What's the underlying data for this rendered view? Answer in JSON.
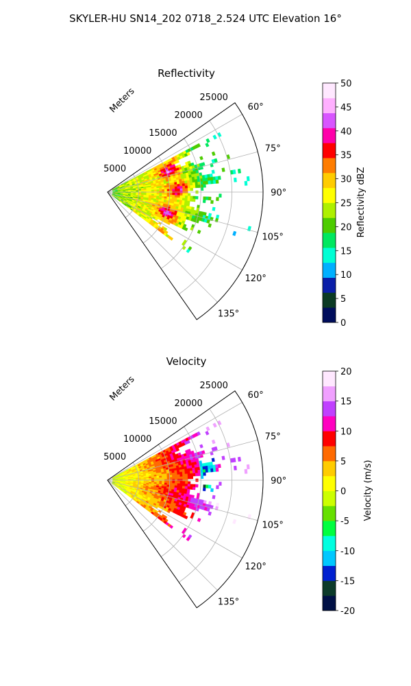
{
  "figure": {
    "suptitle": "SKYLER-HU  SN14_202  0718_2.524 UTC Elevation 16°"
  },
  "chart_data": [
    {
      "type": "heatmap",
      "projection": "polar-sector",
      "title": "Reflectivity",
      "radial_axis_label": "Meters",
      "radial_ticks": [
        "5000",
        "10000",
        "15000",
        "20000",
        "25000"
      ],
      "radial_tick_values": [
        5000,
        10000,
        15000,
        20000,
        25000
      ],
      "radial_range": [
        0,
        25000
      ],
      "angular_ticks": [
        "60°",
        "75°",
        "90°",
        "105°",
        "120°",
        "135°"
      ],
      "angular_tick_values": [
        60,
        75,
        90,
        105,
        120,
        135
      ],
      "angular_range_deg": [
        55,
        145
      ],
      "azimuth_coverage_deg": [
        62,
        127
      ],
      "grid": true,
      "colorbar": {
        "label": "Reflectivity dBZ",
        "ticks": [
          "0",
          "5",
          "10",
          "15",
          "20",
          "25",
          "30",
          "35",
          "40",
          "45",
          "50"
        ],
        "range": [
          0,
          50
        ]
      },
      "field_description_values": {
        "near_range_band_dbz": 25,
        "peak_cells_dbz": 36,
        "far_range_echo_dbz": 17
      }
    },
    {
      "type": "heatmap",
      "projection": "polar-sector",
      "title": "Velocity",
      "radial_axis_label": "Meters",
      "radial_ticks": [
        "5000",
        "10000",
        "15000",
        "20000",
        "25000"
      ],
      "radial_tick_values": [
        5000,
        10000,
        15000,
        20000,
        25000
      ],
      "radial_range": [
        0,
        25000
      ],
      "angular_ticks": [
        "60°",
        "75°",
        "90°",
        "105°",
        "120°",
        "135°"
      ],
      "angular_tick_values": [
        60,
        75,
        90,
        105,
        120,
        135
      ],
      "angular_range_deg": [
        55,
        145
      ],
      "azimuth_coverage_deg": [
        62,
        127
      ],
      "grid": true,
      "colorbar": {
        "label": "Velocity (m/s)",
        "ticks": [
          "-20",
          "-15",
          "-10",
          "-5",
          "0",
          "5",
          "10",
          "15",
          "20"
        ],
        "range": [
          -20,
          20
        ]
      },
      "field_description_values": {
        "near_range_velocity_ms": 0,
        "mid_range_velocity_ms": 9,
        "far_range_velocity_ms": 15
      }
    }
  ],
  "colors": {
    "reflectivity_stops": [
      "#000d5c",
      "#0b3a24",
      "#0a1ea8",
      "#00b0ff",
      "#00ffd4",
      "#00e860",
      "#4dcc00",
      "#aef000",
      "#ffff00",
      "#ffcc00",
      "#ff7d00",
      "#ff0000",
      "#ff00aa",
      "#d855ff",
      "#ffb0ff",
      "#ffe8ff"
    ],
    "velocity_stops": [
      "#001045",
      "#0c3b2a",
      "#0020d0",
      "#00c8ff",
      "#00ffe0",
      "#00ff40",
      "#66e000",
      "#ccff00",
      "#ffff00",
      "#ffcc00",
      "#ff6a00",
      "#ff0000",
      "#ff00c0",
      "#c040ff",
      "#f0a0ff",
      "#ffe8ff"
    ]
  }
}
